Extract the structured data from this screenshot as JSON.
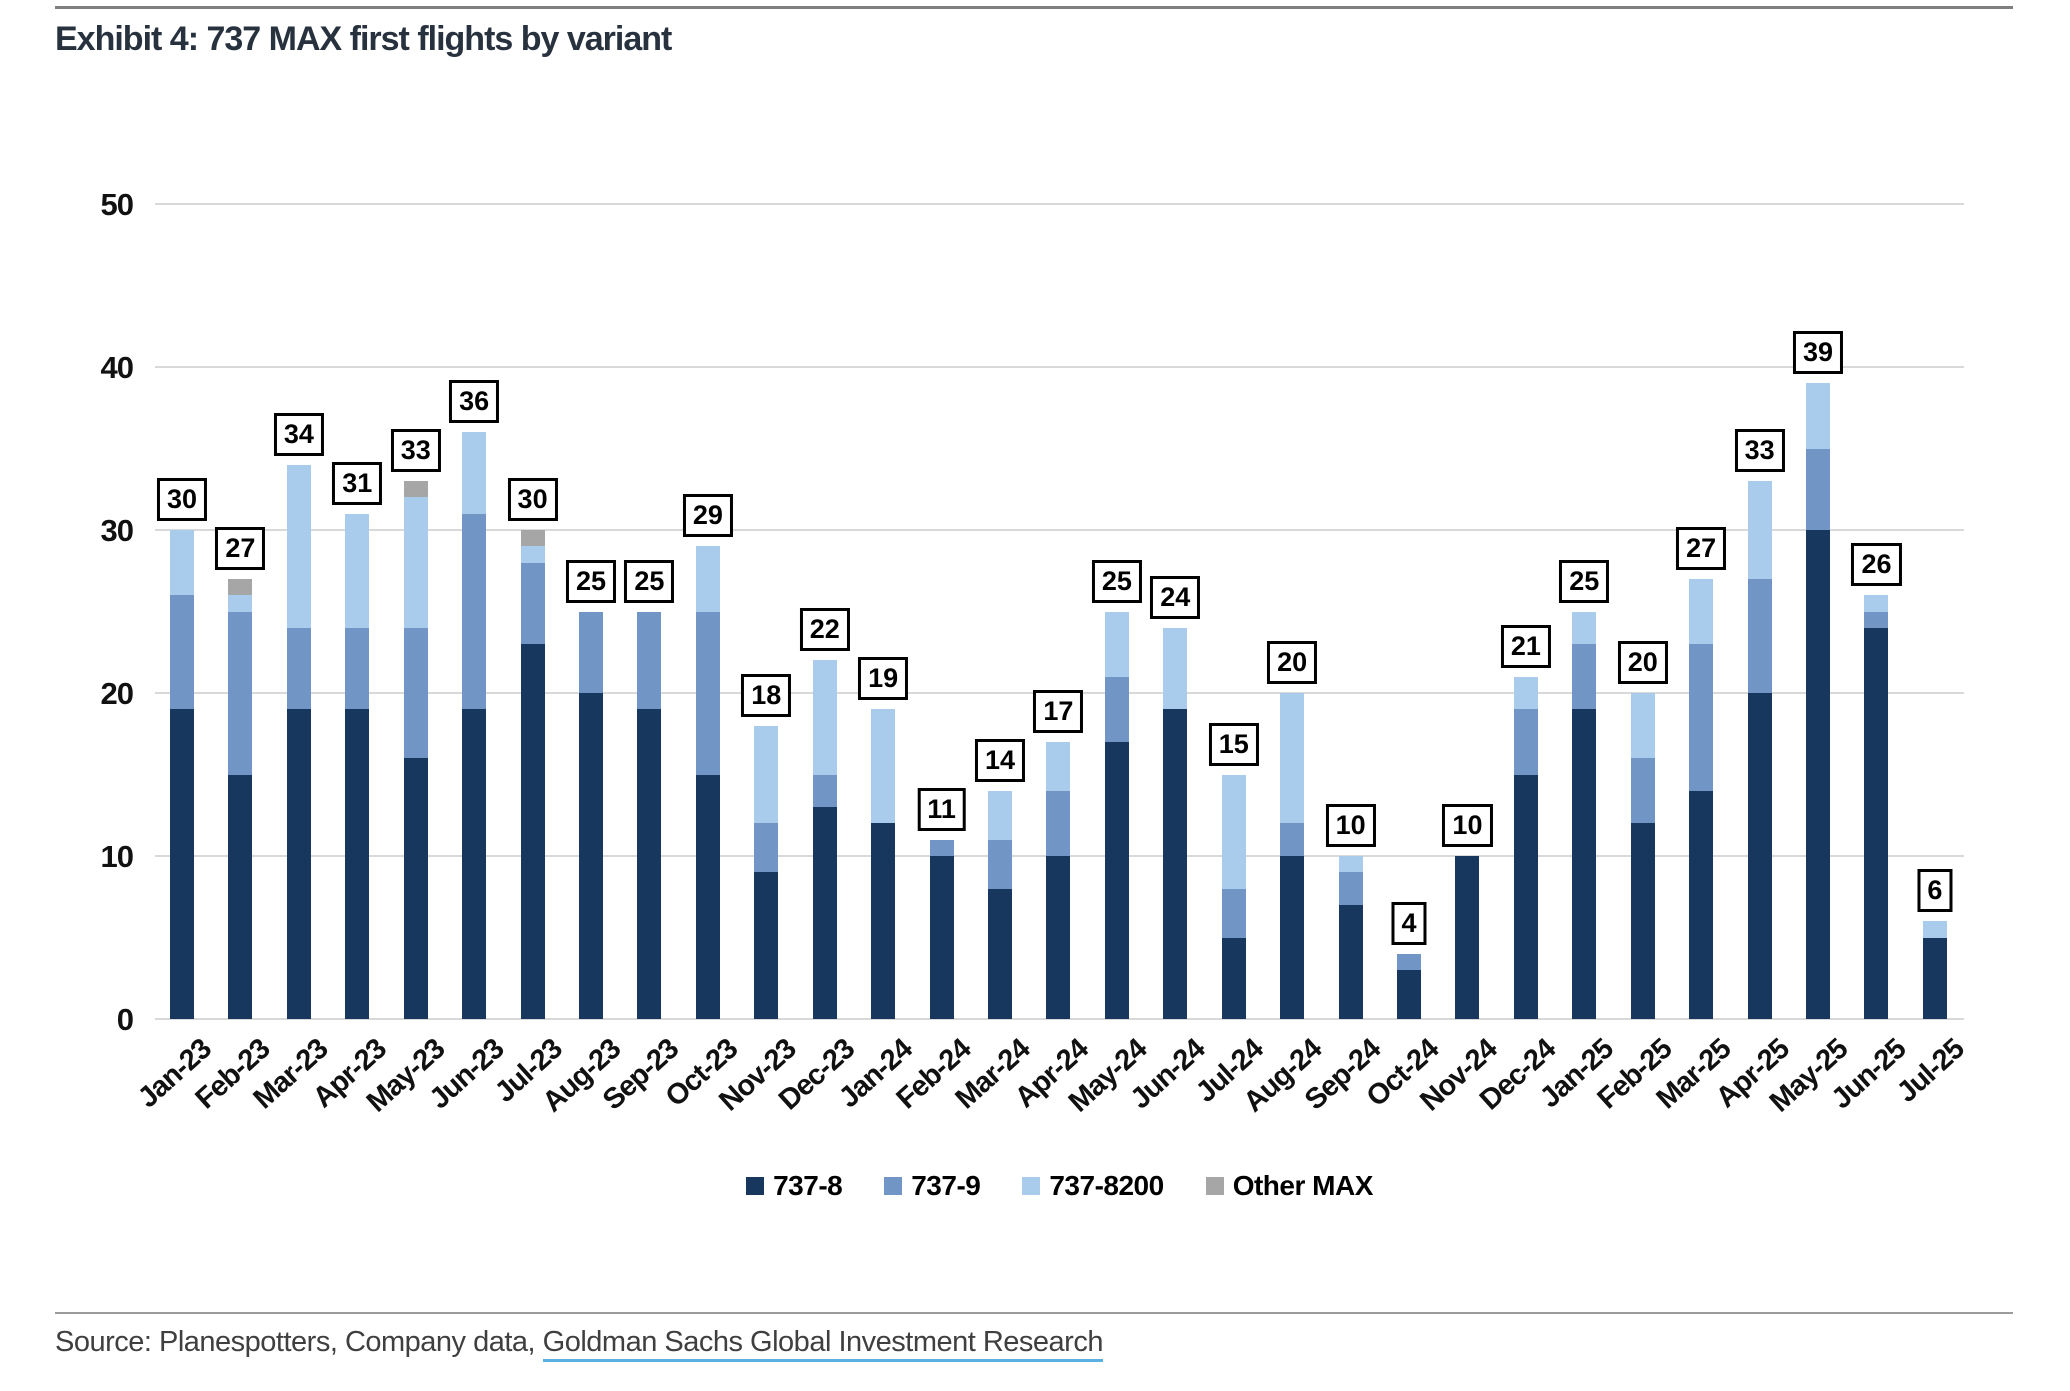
{
  "page": {
    "title": "Exhibit 4: 737 MAX first flights by variant",
    "source_prefix": "Source: Planespotters, Company data, ",
    "source_link": "Goldman Sachs Global Investment Research"
  },
  "colors": {
    "series_737_8": "#17375E",
    "series_737_9": "#7195C4",
    "series_737_8200": "#AACCEC",
    "series_other_max": "#A6A6A6",
    "gridline": "#D9D9D9",
    "title_text": "#28323F",
    "axis_text": "#111111",
    "source_text": "#3F3F3F",
    "source_underline": "#5BAFE1",
    "top_rule": "#7F7F7F",
    "bottom_rule": "#9B9B9B"
  },
  "chart_data": {
    "type": "bar",
    "stacked": true,
    "title": "Exhibit 4: 737 MAX first flights by variant",
    "xlabel": "",
    "ylabel": "",
    "ylim": [
      0,
      50
    ],
    "y_ticks": [
      0,
      10,
      20,
      30,
      40,
      50
    ],
    "grid": true,
    "legend_position": "bottom",
    "categories": [
      "Jan-23",
      "Feb-23",
      "Mar-23",
      "Apr-23",
      "May-23",
      "Jun-23",
      "Jul-23",
      "Aug-23",
      "Sep-23",
      "Oct-23",
      "Nov-23",
      "Dec-23",
      "Jan-24",
      "Feb-24",
      "Mar-24",
      "Apr-24",
      "May-24",
      "Jun-24",
      "Jul-24",
      "Aug-24",
      "Sep-24",
      "Oct-24",
      "Nov-24",
      "Dec-24",
      "Jan-25",
      "Feb-25",
      "Mar-25",
      "Apr-25",
      "May-25",
      "Jun-25",
      "Jul-25"
    ],
    "series": [
      {
        "name": "737-8",
        "color_key": "series_737_8",
        "values": [
          19,
          15,
          19,
          19,
          16,
          19,
          23,
          20,
          19,
          15,
          9,
          13,
          12,
          10,
          8,
          10,
          17,
          19,
          5,
          10,
          7,
          3,
          10,
          15,
          19,
          12,
          14,
          20,
          30,
          24,
          5
        ]
      },
      {
        "name": "737-9",
        "color_key": "series_737_9",
        "values": [
          7,
          10,
          5,
          5,
          8,
          12,
          5,
          5,
          6,
          10,
          3,
          2,
          0,
          1,
          3,
          4,
          4,
          0,
          3,
          2,
          2,
          1,
          0,
          4,
          4,
          4,
          9,
          7,
          5,
          1,
          0
        ]
      },
      {
        "name": "737-8200",
        "color_key": "series_737_8200",
        "values": [
          4,
          1,
          10,
          7,
          8,
          5,
          1,
          0,
          0,
          4,
          6,
          7,
          7,
          0,
          3,
          3,
          4,
          5,
          7,
          8,
          1,
          0,
          0,
          2,
          2,
          4,
          4,
          6,
          4,
          1,
          1
        ]
      },
      {
        "name": "Other MAX",
        "color_key": "series_other_max",
        "values": [
          0,
          1,
          0,
          0,
          1,
          0,
          1,
          0,
          0,
          0,
          0,
          0,
          0,
          0,
          0,
          0,
          0,
          0,
          0,
          0,
          0,
          0,
          0,
          0,
          0,
          0,
          0,
          0,
          0,
          0,
          0
        ]
      }
    ],
    "totals": [
      30,
      27,
      34,
      31,
      33,
      36,
      30,
      25,
      25,
      29,
      18,
      22,
      19,
      11,
      14,
      17,
      25,
      24,
      15,
      20,
      10,
      4,
      10,
      21,
      25,
      20,
      27,
      33,
      39,
      26,
      6
    ]
  }
}
